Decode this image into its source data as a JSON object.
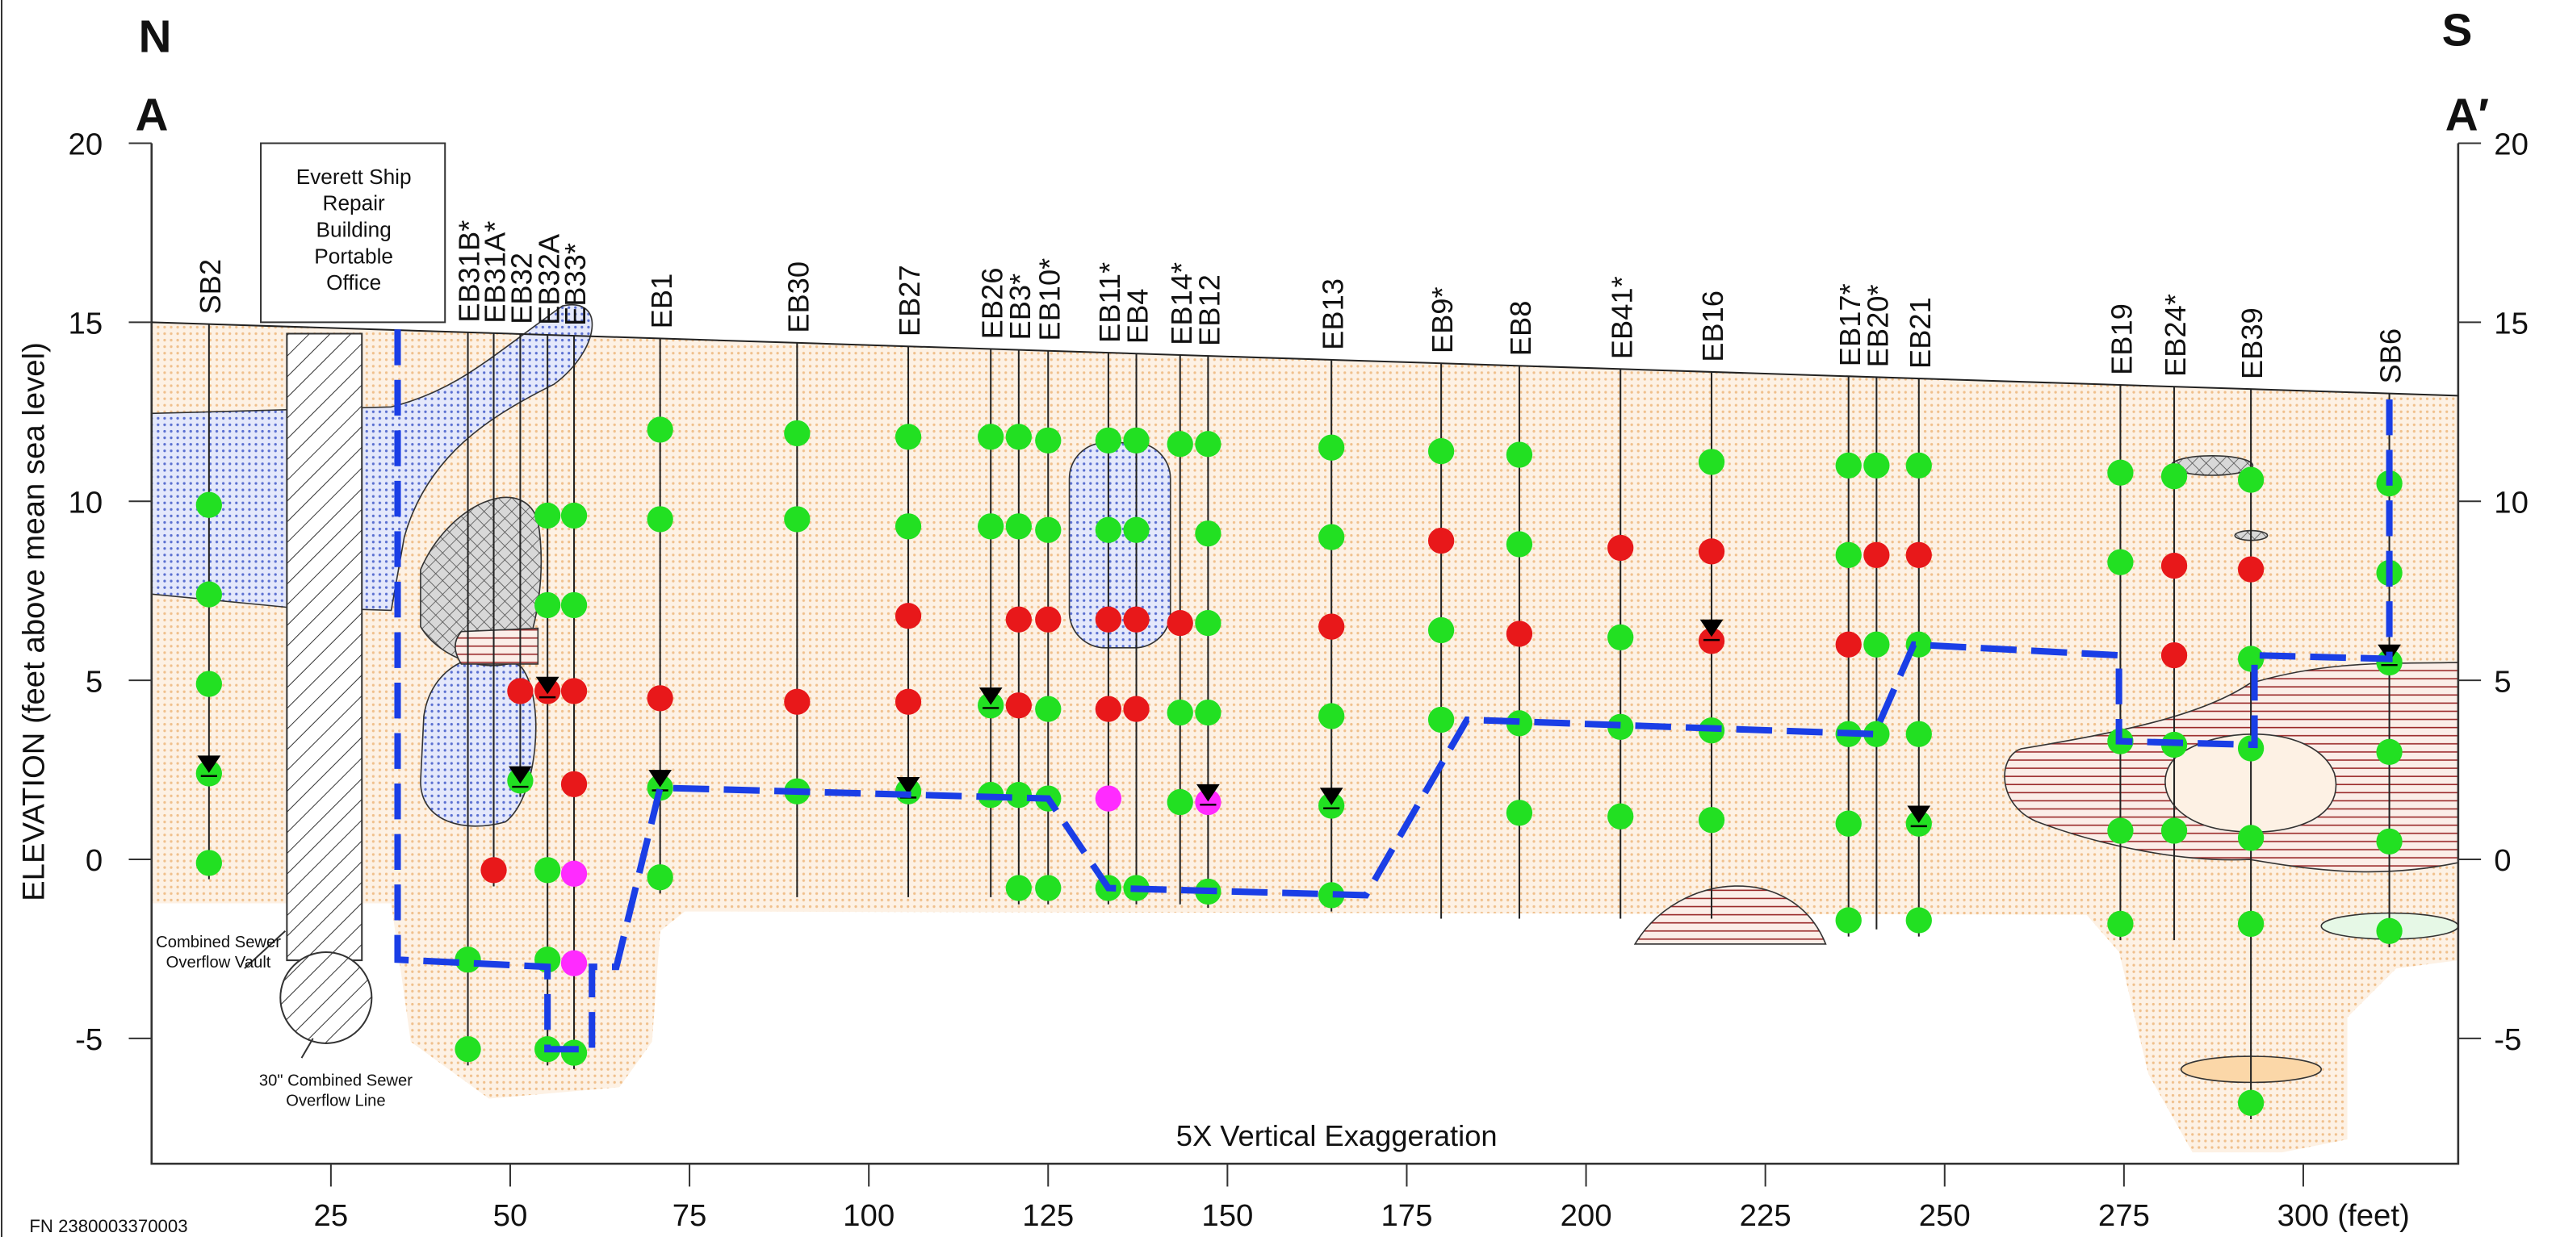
{
  "chart_data": {
    "type": "cross-section",
    "north": "N",
    "south": "S",
    "start_label": "A",
    "end_label": "A′",
    "y_label": "ELEVATION (feet above mean sea level)",
    "note": "5X Vertical Exaggeration",
    "building": "Everett Ship Repair Building Portable Office",
    "vault": "Combined Sewer Overflow Vault",
    "sewer": "30\" Combined Sewer Overflow Line",
    "file_number": "FN 2380003370003",
    "xlim": [
      0,
      321.6
    ],
    "ylim": [
      -8.5,
      20
    ],
    "xticks": [
      25,
      50,
      75,
      100,
      125,
      150,
      175,
      200,
      225,
      250,
      275,
      {
        "value": 300,
        "label": "300 (feet)"
      }
    ],
    "yticks": [
      -5,
      0,
      5,
      10,
      15,
      20
    ],
    "ground": {
      "x": [
        0,
        321.6
      ],
      "y": [
        15,
        12.95
      ]
    },
    "sample_colors": {
      "green": "#22e022",
      "red": "#e8181a",
      "magenta": "#ff2bff"
    },
    "line_color": "#1a3ee6",
    "excavation": {
      "x": [
        34.3,
        34.3,
        55.2,
        55.2,
        61.4,
        61.4,
        64.8,
        70.9,
        125,
        133.4,
        169.3,
        183.4,
        240.2,
        245.7,
        274.3,
        274.3,
        293.2,
        293.2,
        312,
        312
      ],
      "y": [
        14.8,
        -2.8,
        -3.0,
        -5.3,
        -5.3,
        -3.0,
        -3.0,
        2.0,
        1.7,
        -0.8,
        -1.0,
        3.9,
        3.5,
        6.0,
        5.7,
        3.3,
        3.2,
        5.7,
        5.6,
        13.0
      ]
    },
    "boreholes": [
      {
        "name": "SB2",
        "x": 8,
        "bottom": -0.1,
        "samples": [
          9.9,
          7.4,
          4.9,
          2.4,
          -0.1
        ],
        "colors": [
          "green",
          "green",
          "green",
          "green",
          "green"
        ],
        "water": 2.6
      },
      {
        "name": "EB31B*",
        "x": 44.1,
        "bottom": -5.3,
        "samples": [
          -2.8,
          -5.3
        ],
        "colors": [
          "green",
          "green"
        ]
      },
      {
        "name": "EB31A*",
        "x": 47.7,
        "bottom": -0.3,
        "samples": [
          -0.3
        ],
        "colors": [
          "red"
        ]
      },
      {
        "name": "EB32",
        "x": 51.4,
        "bottom": 2.2,
        "samples": [
          4.7,
          2.2
        ],
        "colors": [
          "red",
          "green"
        ],
        "water": 2.3
      },
      {
        "name": "EB32A",
        "x": 55.2,
        "bottom": -5.3,
        "samples": [
          9.6,
          7.1,
          4.7,
          -0.3,
          -2.8,
          -5.3
        ],
        "colors": [
          "green",
          "green",
          "red",
          "green",
          "green",
          "green"
        ],
        "water": 4.8
      },
      {
        "name": "EB33*",
        "x": 58.9,
        "bottom": -5.4,
        "samples": [
          9.6,
          7.1,
          4.7,
          2.1,
          -0.4,
          -2.9,
          -5.4
        ],
        "colors": [
          "green",
          "green",
          "red",
          "red",
          "magenta",
          "magenta",
          "green"
        ]
      },
      {
        "name": "EB1",
        "x": 70.9,
        "bottom": -0.5,
        "samples": [
          12,
          9.5,
          4.5,
          2.0,
          -0.5
        ],
        "colors": [
          "green",
          "green",
          "red",
          "green",
          "green"
        ],
        "water": 2.2
      },
      {
        "name": "EB30",
        "x": 90,
        "bottom": -0.6,
        "samples": [
          11.9,
          9.5,
          4.4,
          1.9
        ],
        "colors": [
          "green",
          "green",
          "red",
          "green"
        ]
      },
      {
        "name": "EB27",
        "x": 105.5,
        "bottom": -0.6,
        "samples": [
          11.8,
          9.3,
          6.8,
          4.4,
          1.9
        ],
        "colors": [
          "green",
          "green",
          "red",
          "red",
          "green"
        ],
        "water": 2.0
      },
      {
        "name": "EB26",
        "x": 117,
        "bottom": -0.6,
        "samples": [
          11.8,
          9.3,
          4.3,
          1.8
        ],
        "colors": [
          "green",
          "green",
          "green",
          "green"
        ],
        "water": 4.5
      },
      {
        "name": "EB3*",
        "x": 120.9,
        "bottom": -0.8,
        "samples": [
          11.8,
          9.3,
          6.7,
          4.3,
          1.8,
          -0.8
        ],
        "colors": [
          "green",
          "green",
          "red",
          "red",
          "green",
          "green"
        ]
      },
      {
        "name": "EB10*",
        "x": 125,
        "bottom": -0.8,
        "samples": [
          11.7,
          9.2,
          6.7,
          4.2,
          1.7,
          -0.8
        ],
        "colors": [
          "green",
          "green",
          "red",
          "green",
          "green",
          "green"
        ]
      },
      {
        "name": "EB11*",
        "x": 133.4,
        "bottom": -0.8,
        "samples": [
          11.7,
          9.2,
          6.7,
          4.2,
          1.7,
          -0.8
        ],
        "colors": [
          "green",
          "green",
          "red",
          "red",
          "magenta",
          "green"
        ]
      },
      {
        "name": "EB4",
        "x": 137.3,
        "bottom": -0.8,
        "samples": [
          11.7,
          9.2,
          6.7,
          4.2,
          -0.8
        ],
        "colors": [
          "green",
          "green",
          "red",
          "red",
          "green"
        ]
      },
      {
        "name": "EB14*",
        "x": 143.4,
        "bottom": -0.8,
        "samples": [
          11.6,
          6.6,
          4.1,
          1.6
        ],
        "colors": [
          "green",
          "red",
          "green",
          "green"
        ]
      },
      {
        "name": "EB12",
        "x": 147.3,
        "bottom": -0.9,
        "samples": [
          11.6,
          9.1,
          6.6,
          4.1,
          1.6,
          -0.9
        ],
        "colors": [
          "green",
          "green",
          "green",
          "green",
          "magenta",
          "green"
        ],
        "water": 1.8
      },
      {
        "name": "EB13",
        "x": 164.5,
        "bottom": -1.0,
        "samples": [
          11.5,
          9.0,
          6.5,
          4.0,
          1.5,
          -1.0
        ],
        "colors": [
          "green",
          "green",
          "red",
          "green",
          "green",
          "green"
        ],
        "water": 1.7
      },
      {
        "name": "EB9*",
        "x": 179.8,
        "bottom": -1.2,
        "samples": [
          11.4,
          8.9,
          6.4,
          3.9
        ],
        "colors": [
          "green",
          "red",
          "green",
          "green"
        ]
      },
      {
        "name": "EB8",
        "x": 190.7,
        "bottom": -1.2,
        "samples": [
          11.3,
          8.8,
          6.3,
          3.8,
          1.3
        ],
        "colors": [
          "green",
          "green",
          "red",
          "green",
          "green"
        ]
      },
      {
        "name": "EB41*",
        "x": 204.8,
        "bottom": -1.2,
        "samples": [
          8.7,
          6.2,
          3.7,
          1.2
        ],
        "colors": [
          "red",
          "green",
          "green",
          "green"
        ]
      },
      {
        "name": "EB16",
        "x": 217.5,
        "bottom": -1.2,
        "samples": [
          11.1,
          8.6,
          6.1,
          3.6,
          1.1
        ],
        "colors": [
          "green",
          "red",
          "red",
          "green",
          "green"
        ],
        "water": 6.4
      },
      {
        "name": "EB17*",
        "x": 236.6,
        "bottom": -1.7,
        "samples": [
          11,
          8.5,
          6.0,
          3.5,
          1.0,
          -1.7
        ],
        "colors": [
          "green",
          "green",
          "red",
          "green",
          "green",
          "green"
        ]
      },
      {
        "name": "EB20*",
        "x": 240.5,
        "bottom": -1.5,
        "samples": [
          11,
          8.5,
          6.0,
          3.5
        ],
        "colors": [
          "green",
          "red",
          "green",
          "green"
        ]
      },
      {
        "name": "EB21",
        "x": 246.4,
        "bottom": -1.7,
        "samples": [
          11,
          8.5,
          6.0,
          3.5,
          1.0,
          -1.7
        ],
        "colors": [
          "green",
          "red",
          "green",
          "green",
          "green",
          "green"
        ],
        "water": 1.2
      },
      {
        "name": "EB19",
        "x": 274.5,
        "bottom": -1.8,
        "samples": [
          10.8,
          8.3,
          3.3,
          0.8,
          -1.8
        ],
        "colors": [
          "green",
          "green",
          "green",
          "green",
          "green"
        ]
      },
      {
        "name": "EB24*",
        "x": 282,
        "bottom": -1.8,
        "samples": [
          10.7,
          8.2,
          5.7,
          3.2,
          0.8
        ],
        "colors": [
          "green",
          "red",
          "red",
          "green",
          "green"
        ]
      },
      {
        "name": "EB39",
        "x": 292.7,
        "bottom": -6.8,
        "samples": [
          10.6,
          8.1,
          5.6,
          3.1,
          0.6,
          -1.8,
          -6.8
        ],
        "colors": [
          "green",
          "red",
          "green",
          "green",
          "green",
          "green",
          "green"
        ]
      },
      {
        "name": "SB6",
        "x": 312,
        "bottom": -2.0,
        "samples": [
          10.5,
          8.0,
          5.5,
          3.0,
          0.5,
          -2.0
        ],
        "colors": [
          "green",
          "green",
          "green",
          "green",
          "green",
          "green"
        ],
        "water": 5.7
      }
    ]
  }
}
